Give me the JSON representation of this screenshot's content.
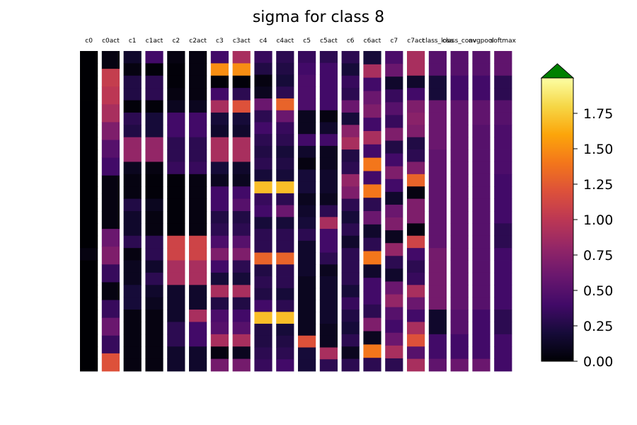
{
  "chart_data": {
    "type": "heatmap",
    "title": "sigma for class 8",
    "columns": [
      "c0",
      "c0act",
      "c1",
      "c1act",
      "c2",
      "c2act",
      "c3",
      "c3act",
      "c4",
      "c4act",
      "c5",
      "c5act",
      "c6",
      "c6act",
      "c7",
      "c7act",
      "class_loss",
      "class_conv",
      "avgpool",
      "softmax"
    ],
    "colormap": "inferno",
    "vmin": 0.0,
    "vmax": 2.0,
    "colorbar": {
      "ticks": [
        0.0,
        0.25,
        0.5,
        0.75,
        1.0,
        1.25,
        1.5,
        1.75
      ],
      "tick_labels": [
        "0.00",
        "0.25",
        "0.50",
        "0.75",
        "1.00",
        "1.25",
        "1.50",
        "1.75"
      ],
      "extend": "max",
      "extend_color": "#008000"
    },
    "columns_cells": [
      [
        0.0,
        0.0,
        0.0,
        0.0,
        0.0,
        0.0,
        0.0,
        0.0,
        0.0,
        0.0,
        0.0,
        0.0,
        0.0,
        0.0,
        0.0,
        0.0,
        0.05,
        0.0,
        0.0,
        0.0,
        0.0,
        0.0,
        0.0,
        0.0,
        0.0,
        0.0
      ],
      [
        0.05,
        1.05,
        1.0,
        0.9,
        0.7,
        0.5,
        0.4,
        0.05,
        0.05,
        0.05,
        0.6,
        0.7,
        0.35,
        0.05,
        0.35,
        0.6,
        0.35,
        1.2
      ],
      [
        0.15,
        0.05,
        0.25,
        0.25,
        0.02,
        0.3,
        0.25,
        0.8,
        0.8,
        0.1,
        0.05,
        0.05,
        0.25,
        0.15,
        0.15,
        0.3,
        0.05,
        0.1,
        0.1,
        0.2,
        0.2,
        0.05,
        0.05,
        0.05,
        0.05,
        0.05
      ],
      [
        0.4,
        0.02,
        0.3,
        0.3,
        0.02,
        0.2,
        0.2,
        0.8,
        0.8,
        0.05,
        0.02,
        0.02,
        0.1,
        0.05,
        0.05,
        0.3,
        0.3,
        0.15,
        0.3,
        0.15,
        0.1,
        0.05,
        0.05,
        0.05,
        0.05,
        0.05
      ],
      [
        0.05,
        0.02,
        0.02,
        0.05,
        0.1,
        0.4,
        0.4,
        0.3,
        0.3,
        0.35,
        0.02,
        0.02,
        0.02,
        0.02,
        0.02,
        1.1,
        1.1,
        0.9,
        0.9,
        0.15,
        0.15,
        0.15,
        0.3,
        0.3,
        0.15,
        0.15
      ],
      [
        0.05,
        0.05,
        0.05,
        0.05,
        0.1,
        0.4,
        0.4,
        0.3,
        0.3,
        0.35,
        0.05,
        0.05,
        0.05,
        0.05,
        0.05,
        1.1,
        1.1,
        0.9,
        0.9,
        0.15,
        0.15,
        0.9,
        0.4,
        0.4,
        0.15,
        0.15
      ],
      [
        0.4,
        1.5,
        0.02,
        0.4,
        0.9,
        0.2,
        0.15,
        0.9,
        0.9,
        0.2,
        0.1,
        0.4,
        0.4,
        0.25,
        0.3,
        0.45,
        0.7,
        0.4,
        0.2,
        0.9,
        0.25,
        0.45,
        0.5,
        0.9,
        0.05,
        0.65
      ],
      [
        0.9,
        1.5,
        0.02,
        0.3,
        1.2,
        0.2,
        0.15,
        0.9,
        0.9,
        0.15,
        0.1,
        0.4,
        0.5,
        0.25,
        0.3,
        0.5,
        0.7,
        0.3,
        0.2,
        0.9,
        0.25,
        0.4,
        0.5,
        0.9,
        0.1,
        0.65
      ],
      [
        0.35,
        0.25,
        0.05,
        0.1,
        0.6,
        0.3,
        0.4,
        0.3,
        0.25,
        0.3,
        0.2,
        1.7,
        0.35,
        0.4,
        0.2,
        0.3,
        0.3,
        1.3,
        0.25,
        0.3,
        0.25,
        0.4,
        1.7,
        0.25,
        0.25,
        0.3,
        0.35
      ],
      [
        0.3,
        0.25,
        0.2,
        0.3,
        1.3,
        0.6,
        0.35,
        0.3,
        0.2,
        0.25,
        0.2,
        1.7,
        0.3,
        0.6,
        0.2,
        0.3,
        0.3,
        1.3,
        0.3,
        0.3,
        0.2,
        0.3,
        1.7,
        0.2,
        0.25,
        0.3,
        0.4
      ],
      [
        0.35,
        0.4,
        0.45,
        0.45,
        0.45,
        0.1,
        0.1,
        0.4,
        0.15,
        0.05,
        0.2,
        0.2,
        0.1,
        0.15,
        0.2,
        0.3,
        0.15,
        0.15,
        0.15,
        0.1,
        0.1,
        0.1,
        0.1,
        0.1,
        1.2,
        0.2,
        0.2
      ],
      [
        0.3,
        0.4,
        0.4,
        0.4,
        0.4,
        0.05,
        0.15,
        0.4,
        0.1,
        0.1,
        0.15,
        0.15,
        0.1,
        0.3,
        0.9,
        0.4,
        0.4,
        0.3,
        0.1,
        0.15,
        0.15,
        0.15,
        0.15,
        0.1,
        0.1,
        0.9,
        0.3
      ],
      [
        0.3,
        0.2,
        0.35,
        0.3,
        0.6,
        0.2,
        0.75,
        0.9,
        0.25,
        0.3,
        0.8,
        0.7,
        0.3,
        0.2,
        0.3,
        0.15,
        0.3,
        0.3,
        0.3,
        0.2,
        0.35,
        0.25,
        0.2,
        0.3,
        0.1,
        0.3
      ],
      [
        0.2,
        0.9,
        0.4,
        0.6,
        0.7,
        0.4,
        0.9,
        0.4,
        1.4,
        0.4,
        1.4,
        0.3,
        0.6,
        0.15,
        0.3,
        1.4,
        0.15,
        0.4,
        0.4,
        0.3,
        0.7,
        0.1,
        1.4,
        0.3
      ],
      [
        0.45,
        0.6,
        0.15,
        0.35,
        0.5,
        0.35,
        0.7,
        0.25,
        0.4,
        0.7,
        0.4,
        0.15,
        0.6,
        0.7,
        0.1,
        0.8,
        0.3,
        0.15,
        0.6,
        0.8,
        0.5,
        0.4,
        0.6,
        0.9,
        0.3
      ],
      [
        0.9,
        0.9,
        0.15,
        0.4,
        0.7,
        0.75,
        0.7,
        0.25,
        0.3,
        0.7,
        1.3,
        0.05,
        0.7,
        0.7,
        0.05,
        1.1,
        0.4,
        0.3,
        0.35,
        0.9,
        0.6,
        0.4,
        0.9,
        1.2,
        0.5,
        0.9
      ],
      [
        0.5,
        0.5,
        0.2,
        0.2,
        0.6,
        0.6,
        0.6,
        0.6,
        0.55,
        0.55,
        0.55,
        0.55,
        0.55,
        0.55,
        0.55,
        0.55,
        0.65,
        0.65,
        0.65,
        0.65,
        0.65,
        0.15,
        0.15,
        0.4,
        0.4,
        0.55
      ],
      [
        0.5,
        0.5,
        0.4,
        0.4,
        0.55,
        0.55,
        0.55,
        0.55,
        0.55,
        0.55,
        0.55,
        0.55,
        0.55,
        0.55,
        0.55,
        0.55,
        0.55,
        0.55,
        0.55,
        0.55,
        0.55,
        0.5,
        0.5,
        0.4,
        0.4,
        0.6
      ],
      [
        0.5,
        0.5,
        0.4,
        0.4,
        0.55,
        0.55,
        0.5,
        0.5,
        0.5,
        0.5,
        0.5,
        0.5,
        0.5,
        0.5,
        0.5,
        0.5,
        0.5,
        0.5,
        0.5,
        0.5,
        0.5,
        0.4,
        0.4,
        0.4,
        0.4,
        0.6
      ],
      [
        0.55,
        0.55,
        0.3,
        0.3,
        0.5,
        0.5,
        0.45,
        0.45,
        0.45,
        0.45,
        0.4,
        0.4,
        0.4,
        0.4,
        0.3,
        0.3,
        0.4,
        0.4,
        0.4,
        0.4,
        0.4,
        0.3,
        0.3,
        0.4,
        0.4,
        0.4
      ]
    ]
  }
}
